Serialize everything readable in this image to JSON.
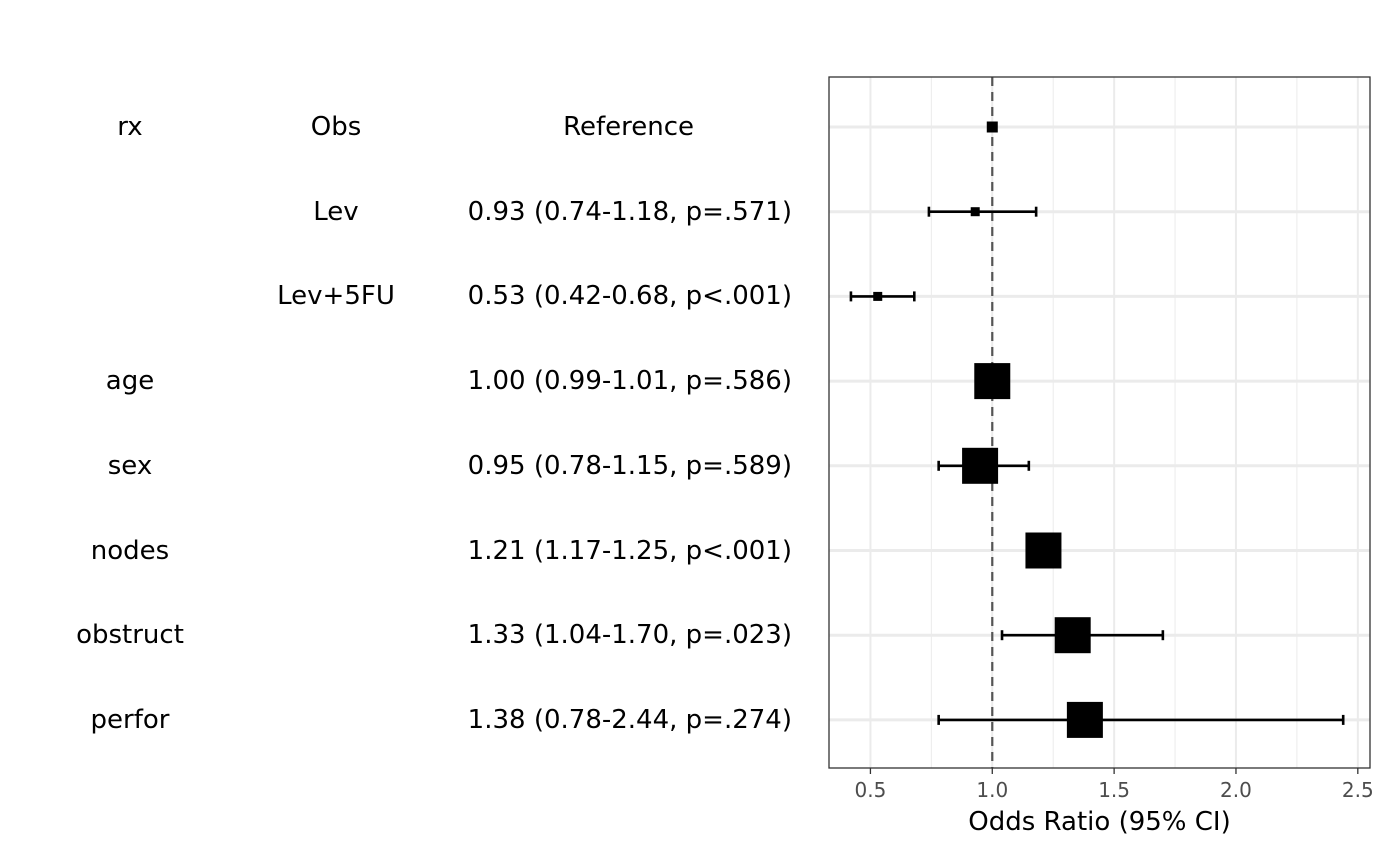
{
  "rows": [
    {
      "variable": "rx",
      "level": "Obs",
      "estimate_text": "Reference"
    },
    {
      "variable": "",
      "level": "Lev",
      "estimate_text": "0.93 (0.74-1.18, p=.571)"
    },
    {
      "variable": "",
      "level": "Lev+5FU",
      "estimate_text": "0.53 (0.42-0.68, p<.001)"
    },
    {
      "variable": "age",
      "level": "",
      "estimate_text": "1.00 (0.99-1.01, p=.586)"
    },
    {
      "variable": "sex",
      "level": "",
      "estimate_text": "0.95 (0.78-1.15, p=.589)"
    },
    {
      "variable": "nodes",
      "level": "",
      "estimate_text": "1.21 (1.17-1.25, p<.001)"
    },
    {
      "variable": "obstruct",
      "level": "",
      "estimate_text": "1.33 (1.04-1.70, p=.023)"
    },
    {
      "variable": "perfor",
      "level": "",
      "estimate_text": "1.38 (0.78-2.44, p=.274)"
    }
  ],
  "chart_data": {
    "type": "scatter",
    "subtype": "forest",
    "xlabel": "Odds Ratio (95% CI)",
    "xlim": [
      0.33,
      2.55
    ],
    "xticks": [
      0.5,
      1.0,
      1.5,
      2.0,
      2.5
    ],
    "xtick_labels": [
      "0.5",
      "1.0",
      "1.5",
      "2.0",
      "2.5"
    ],
    "reference_line": 1.0,
    "grid": true,
    "colors": {
      "marker": "#000000",
      "grid": "#ebebeb",
      "reference": "#555555",
      "border": "#333333"
    },
    "points": [
      {
        "label": "rx Obs",
        "or": 1.0,
        "lower": null,
        "upper": null,
        "size": "small"
      },
      {
        "label": "Lev",
        "or": 0.93,
        "lower": 0.74,
        "upper": 1.18,
        "size": "small"
      },
      {
        "label": "Lev+5FU",
        "or": 0.53,
        "lower": 0.42,
        "upper": 0.68,
        "size": "small"
      },
      {
        "label": "age",
        "or": 1.0,
        "lower": 0.99,
        "upper": 1.01,
        "size": "large"
      },
      {
        "label": "sex",
        "or": 0.95,
        "lower": 0.78,
        "upper": 1.15,
        "size": "large"
      },
      {
        "label": "nodes",
        "or": 1.21,
        "lower": 1.17,
        "upper": 1.25,
        "size": "large"
      },
      {
        "label": "obstruct",
        "or": 1.33,
        "lower": 1.04,
        "upper": 1.7,
        "size": "large"
      },
      {
        "label": "perfor",
        "or": 1.38,
        "lower": 0.78,
        "upper": 2.44,
        "size": "large"
      }
    ]
  }
}
